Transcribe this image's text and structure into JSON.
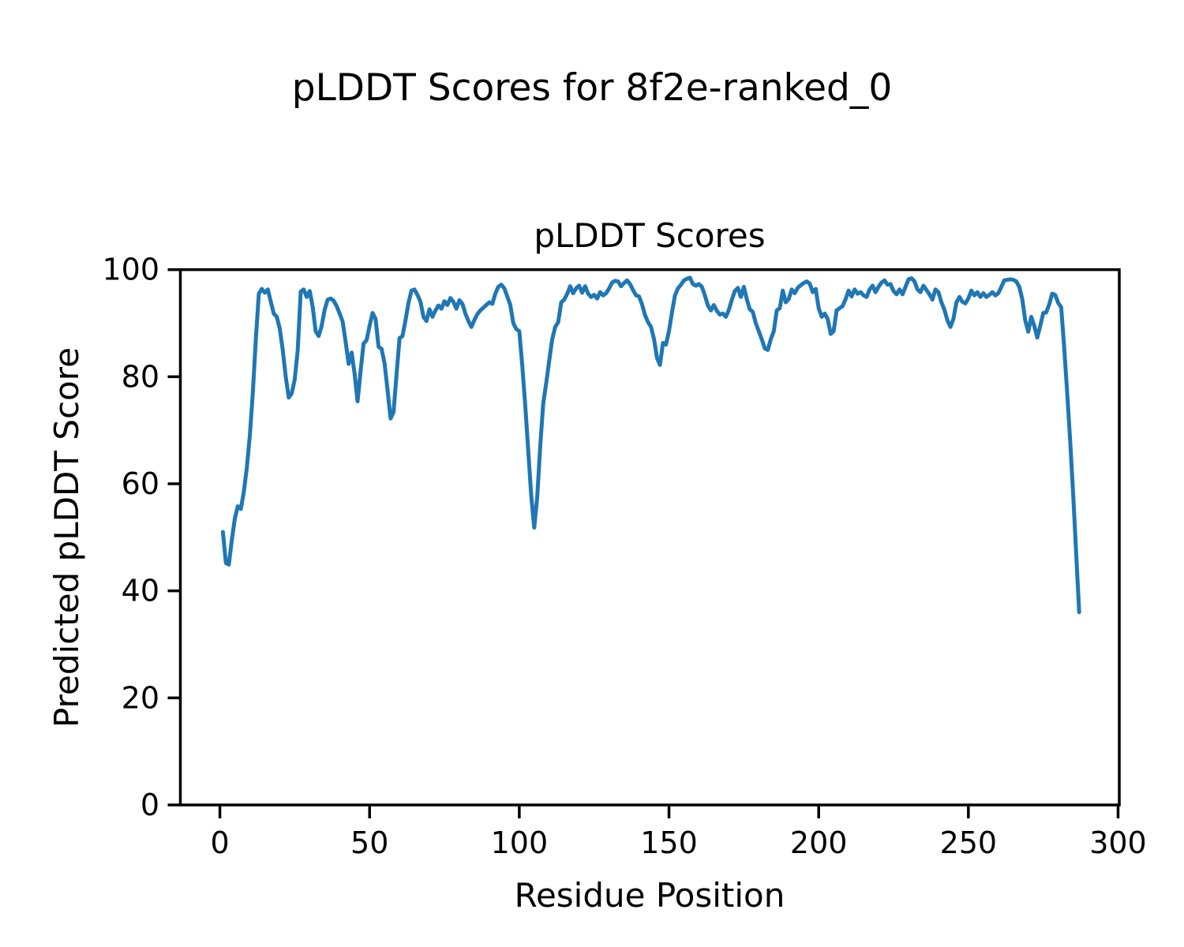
{
  "figure": {
    "suptitle": "pLDDT Scores for 8f2e-ranked_0"
  },
  "chart_data": {
    "type": "line",
    "title": "pLDDT Scores",
    "suptitle": "pLDDT Scores for 8f2e-ranked_0",
    "xlabel": "Residue Position",
    "ylabel": "Predicted pLDDT Score",
    "xlim": [
      -13.2,
      300.4
    ],
    "ylim": [
      0,
      100
    ],
    "xticks": [
      0,
      50,
      100,
      150,
      200,
      250,
      300
    ],
    "yticks": [
      0,
      20,
      40,
      60,
      80,
      100
    ],
    "grid": false,
    "legend_position": "none",
    "line_color": "#1f77b4",
    "background_color": "#ffffff",
    "text_color": "#000000",
    "series": [
      {
        "name": "pLDDT",
        "x_start": 1,
        "x_step": 1,
        "n_points": 287,
        "values": [
          51.0,
          45.2,
          44.9,
          49.5,
          53.5,
          55.8,
          55.3,
          58.5,
          63.0,
          69.0,
          77.0,
          87.0,
          95.5,
          96.4,
          95.7,
          96.3,
          94.0,
          91.8,
          91.2,
          89.0,
          85.0,
          80.0,
          76.1,
          76.9,
          79.5,
          85.0,
          95.9,
          96.3,
          94.9,
          96.0,
          93.0,
          88.5,
          87.6,
          89.5,
          92.5,
          94.4,
          94.6,
          94.2,
          93.2,
          91.8,
          90.3,
          86.5,
          82.4,
          84.5,
          80.5,
          75.4,
          81.0,
          86.2,
          86.8,
          89.5,
          91.9,
          90.8,
          85.6,
          85.2,
          82.5,
          77.5,
          72.2,
          73.4,
          80.5,
          87.2,
          87.6,
          90.5,
          93.8,
          96.1,
          96.3,
          95.3,
          94.0,
          91.2,
          90.4,
          92.6,
          91.2,
          92.4,
          93.3,
          92.7,
          94.1,
          93.4,
          94.7,
          94.0,
          92.7,
          94.3,
          93.6,
          91.8,
          90.4,
          89.3,
          90.6,
          91.7,
          92.4,
          92.9,
          93.4,
          93.9,
          93.6,
          95.5,
          96.8,
          97.2,
          96.5,
          95.0,
          93.4,
          90.0,
          88.9,
          88.5,
          82.0,
          74.5,
          66.0,
          57.8,
          51.8,
          57.5,
          67.0,
          75.0,
          78.8,
          83.0,
          87.0,
          89.3,
          90.2,
          93.9,
          94.4,
          95.5,
          96.9,
          95.6,
          96.5,
          97.0,
          95.7,
          96.9,
          95.5,
          94.9,
          95.3,
          94.6,
          95.8,
          95.2,
          95.6,
          96.5,
          97.6,
          97.9,
          97.8,
          96.9,
          97.5,
          98.0,
          97.3,
          96.2,
          95.2,
          95.0,
          93.5,
          91.5,
          90.2,
          89.3,
          87.0,
          83.5,
          82.2,
          86.3,
          86.0,
          88.5,
          92.0,
          95.2,
          96.5,
          97.2,
          98.0,
          98.3,
          98.5,
          97.3,
          97.0,
          97.3,
          96.8,
          95.2,
          93.3,
          92.4,
          93.4,
          92.3,
          91.6,
          91.8,
          91.2,
          92.5,
          94.4,
          96.0,
          96.6,
          94.9,
          96.8,
          94.5,
          92.6,
          92.1,
          90.0,
          88.5,
          87.0,
          85.3,
          85.0,
          87.0,
          88.5,
          92.4,
          92.8,
          96.1,
          93.9,
          94.5,
          96.3,
          95.6,
          96.6,
          97.1,
          97.5,
          97.8,
          97.4,
          95.8,
          96.4,
          92.8,
          91.2,
          91.8,
          90.8,
          88.0,
          88.5,
          92.4,
          92.8,
          93.2,
          94.5,
          96.1,
          95.0,
          96.3,
          95.5,
          95.8,
          95.2,
          94.9,
          96.3,
          97.0,
          95.8,
          96.8,
          97.6,
          98.0,
          97.2,
          97.3,
          96.0,
          95.4,
          96.3,
          95.4,
          96.8,
          98.2,
          98.4,
          97.8,
          96.3,
          95.8,
          97.0,
          96.2,
          95.4,
          94.4,
          96.3,
          95.8,
          93.9,
          92.5,
          90.5,
          89.3,
          90.8,
          93.9,
          94.9,
          94.0,
          93.7,
          94.6,
          96.1,
          95.2,
          95.8,
          94.9,
          95.6,
          94.9,
          95.3,
          95.8,
          95.2,
          95.6,
          96.8,
          98.0,
          98.1,
          98.2,
          98.1,
          97.8,
          96.8,
          94.5,
          90.5,
          88.4,
          91.2,
          89.5,
          87.3,
          89.5,
          91.9,
          92.0,
          93.5,
          95.5,
          95.3,
          93.8,
          93.0,
          85.5,
          77.0,
          68.0,
          58.0,
          47.0,
          36.0
        ]
      }
    ]
  }
}
